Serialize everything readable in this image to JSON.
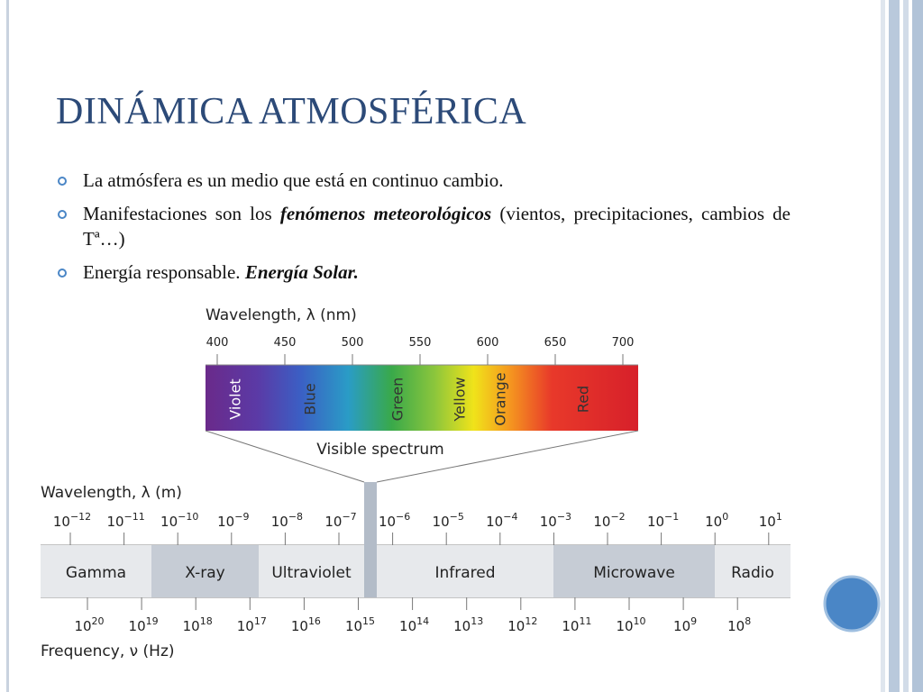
{
  "slide": {
    "title": "DINÁMICA ATMOSFÉRICA",
    "bullets": [
      {
        "segments": [
          {
            "text": "La atmósfera es un medio que está en continuo cambio."
          }
        ]
      },
      {
        "segments": [
          {
            "text": "Manifestaciones son los "
          },
          {
            "text": "fenómenos meteorológicos",
            "style": "bold-italic"
          },
          {
            "text": " (vientos, precipitaciones, cambios de Tª…)"
          }
        ]
      },
      {
        "segments": [
          {
            "text": "Energía responsable. "
          },
          {
            "text": "Energía Solar.",
            "style": "bold-italic"
          }
        ]
      }
    ]
  },
  "figure": {
    "visible": {
      "axis_label": "Wavelength, λ (nm)",
      "ticks": [
        400,
        450,
        500,
        550,
        600,
        650,
        700
      ],
      "colors": [
        "Violet",
        "Blue",
        "Green",
        "Yellow",
        "Orange",
        "Red"
      ],
      "caption": "Visible spectrum"
    },
    "spectrum": {
      "wavelength_label": "Wavelength, λ (m)",
      "power_base": "10",
      "wavelength_exponents": [
        "−12",
        "−11",
        "−10",
        "−9",
        "−8",
        "−7",
        "−6",
        "−5",
        "−4",
        "−3",
        "−2",
        "−1",
        "0",
        "1"
      ],
      "bands": [
        "Gamma",
        "X-ray",
        "Ultraviolet",
        "Infrared",
        "Microwave",
        "Radio"
      ],
      "frequency_exponents": [
        "20",
        "19",
        "18",
        "17",
        "16",
        "15",
        "14",
        "13",
        "12",
        "11",
        "10",
        "9",
        "8"
      ],
      "frequency_label": "Frequency, ν (Hz)"
    }
  }
}
